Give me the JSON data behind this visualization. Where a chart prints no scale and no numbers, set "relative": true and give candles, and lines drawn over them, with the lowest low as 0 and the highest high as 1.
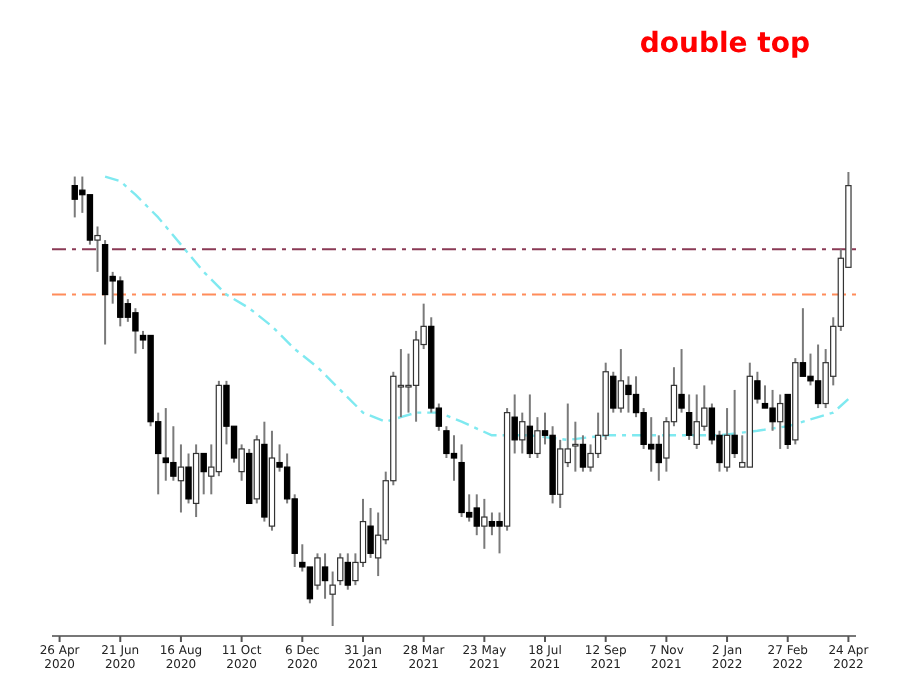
{
  "chart_data": {
    "type": "candlestick",
    "title": "double top",
    "relative": true,
    "xlim": [
      "2020-04-19",
      "2022-05-01"
    ],
    "xticks": [
      {
        "value": "2020-04-26",
        "label": "26 Apr 2020"
      },
      {
        "value": "2020-06-21",
        "label": "21 Jun 2020"
      },
      {
        "value": "2020-08-16",
        "label": "16 Aug 2020"
      },
      {
        "value": "2020-10-11",
        "label": "11 Oct 2020"
      },
      {
        "value": "2020-12-06",
        "label": "6 Dec 2020"
      },
      {
        "value": "2021-01-31",
        "label": "31 Jan 2021"
      },
      {
        "value": "2021-03-28",
        "label": "28 Mar 2021"
      },
      {
        "value": "2021-05-23",
        "label": "23 May 2021"
      },
      {
        "value": "2021-07-18",
        "label": "18 Jul 2021"
      },
      {
        "value": "2021-09-12",
        "label": "12 Sep 2021"
      },
      {
        "value": "2021-11-07",
        "label": "7 Nov 2021"
      },
      {
        "value": "2022-01-02",
        "label": "2 Jan 2022"
      },
      {
        "value": "2022-02-27",
        "label": "27 Feb 2022"
      },
      {
        "value": "2022-04-24",
        "label": "24 Apr 2022"
      }
    ],
    "x": [
      "2020-05-10",
      "2020-05-17",
      "2020-05-24",
      "2020-05-31",
      "2020-06-07",
      "2020-06-14",
      "2020-06-21",
      "2020-06-28",
      "2020-07-05",
      "2020-07-12",
      "2020-07-19",
      "2020-07-26",
      "2020-08-02",
      "2020-08-09",
      "2020-08-16",
      "2020-08-23",
      "2020-08-30",
      "2020-09-06",
      "2020-09-13",
      "2020-09-20",
      "2020-09-27",
      "2020-10-04",
      "2020-10-11",
      "2020-10-18",
      "2020-10-25",
      "2020-11-01",
      "2020-11-08",
      "2020-11-15",
      "2020-11-22",
      "2020-11-29",
      "2020-12-06",
      "2020-12-13",
      "2020-12-20",
      "2020-12-27",
      "2021-01-03",
      "2021-01-10",
      "2021-01-17",
      "2021-01-24",
      "2021-01-31",
      "2021-02-07",
      "2021-02-14",
      "2021-02-21",
      "2021-02-28",
      "2021-03-07",
      "2021-03-14",
      "2021-03-21",
      "2021-03-28",
      "2021-04-04",
      "2021-04-11",
      "2021-04-18",
      "2021-04-25",
      "2021-05-02",
      "2021-05-09",
      "2021-05-16",
      "2021-05-23",
      "2021-05-30",
      "2021-06-06",
      "2021-06-13",
      "2021-06-20",
      "2021-06-27",
      "2021-07-04",
      "2021-07-11",
      "2021-07-18",
      "2021-07-25",
      "2021-08-01",
      "2021-08-08",
      "2021-08-15",
      "2021-08-22",
      "2021-08-29",
      "2021-09-05",
      "2021-09-12",
      "2021-09-19",
      "2021-09-26",
      "2021-10-03",
      "2021-10-10",
      "2021-10-17",
      "2021-10-24",
      "2021-10-31",
      "2021-11-07",
      "2021-11-14",
      "2021-11-21",
      "2021-11-28",
      "2021-12-05",
      "2021-12-12",
      "2021-12-19",
      "2021-12-26",
      "2022-01-02",
      "2022-01-09",
      "2022-01-16",
      "2022-01-23",
      "2022-01-30",
      "2022-02-06",
      "2022-02-13",
      "2022-02-20",
      "2022-02-27",
      "2022-03-06",
      "2022-03-13",
      "2022-03-20",
      "2022-03-27",
      "2022-04-03",
      "2022-04-10",
      "2022-04-17",
      "2022-04-24"
    ],
    "ohlc": [
      [
        0.97,
        0.99,
        0.9,
        0.94
      ],
      [
        0.96,
        0.99,
        0.91,
        0.95
      ],
      [
        0.95,
        0.95,
        0.84,
        0.85
      ],
      [
        0.85,
        0.88,
        0.78,
        0.86
      ],
      [
        0.84,
        0.85,
        0.62,
        0.73
      ],
      [
        0.77,
        0.78,
        0.71,
        0.76
      ],
      [
        0.76,
        0.77,
        0.66,
        0.68
      ],
      [
        0.71,
        0.72,
        0.67,
        0.68
      ],
      [
        0.69,
        0.7,
        0.6,
        0.65
      ],
      [
        0.64,
        0.65,
        0.61,
        0.63
      ],
      [
        0.64,
        0.64,
        0.44,
        0.45
      ],
      [
        0.45,
        0.47,
        0.29,
        0.38
      ],
      [
        0.37,
        0.48,
        0.32,
        0.36
      ],
      [
        0.36,
        0.44,
        0.32,
        0.33
      ],
      [
        0.32,
        0.4,
        0.25,
        0.35
      ],
      [
        0.35,
        0.38,
        0.27,
        0.28
      ],
      [
        0.27,
        0.4,
        0.24,
        0.38
      ],
      [
        0.38,
        0.38,
        0.29,
        0.34
      ],
      [
        0.33,
        0.4,
        0.29,
        0.35
      ],
      [
        0.34,
        0.54,
        0.33,
        0.53
      ],
      [
        0.53,
        0.54,
        0.4,
        0.44
      ],
      [
        0.44,
        0.44,
        0.36,
        0.37
      ],
      [
        0.34,
        0.4,
        0.32,
        0.39
      ],
      [
        0.38,
        0.39,
        0.27,
        0.27
      ],
      [
        0.28,
        0.42,
        0.27,
        0.41
      ],
      [
        0.4,
        0.45,
        0.23,
        0.24
      ],
      [
        0.22,
        0.43,
        0.21,
        0.37
      ],
      [
        0.36,
        0.4,
        0.34,
        0.35
      ],
      [
        0.35,
        0.38,
        0.27,
        0.28
      ],
      [
        0.28,
        0.29,
        0.13,
        0.16
      ],
      [
        0.14,
        0.18,
        0.12,
        0.13
      ],
      [
        0.13,
        0.13,
        0.05,
        0.06
      ],
      [
        0.09,
        0.16,
        0.08,
        0.15
      ],
      [
        0.13,
        0.16,
        0.06,
        0.1
      ],
      [
        0.07,
        0.12,
        0.0,
        0.09
      ],
      [
        0.1,
        0.16,
        0.09,
        0.15
      ],
      [
        0.14,
        0.16,
        0.08,
        0.09
      ],
      [
        0.1,
        0.16,
        0.09,
        0.14
      ],
      [
        0.14,
        0.28,
        0.13,
        0.23
      ],
      [
        0.22,
        0.26,
        0.15,
        0.16
      ],
      [
        0.15,
        0.25,
        0.11,
        0.2
      ],
      [
        0.19,
        0.34,
        0.18,
        0.32
      ],
      [
        0.32,
        0.56,
        0.31,
        0.55
      ],
      [
        0.53,
        0.61,
        0.46,
        0.53
      ],
      [
        0.53,
        0.6,
        0.47,
        0.53
      ],
      [
        0.53,
        0.65,
        0.45,
        0.63
      ],
      [
        0.62,
        0.71,
        0.61,
        0.66
      ],
      [
        0.66,
        0.68,
        0.47,
        0.48
      ],
      [
        0.48,
        0.49,
        0.43,
        0.44
      ],
      [
        0.43,
        0.44,
        0.37,
        0.38
      ],
      [
        0.38,
        0.42,
        0.32,
        0.37
      ],
      [
        0.36,
        0.4,
        0.24,
        0.25
      ],
      [
        0.25,
        0.29,
        0.23,
        0.24
      ],
      [
        0.26,
        0.29,
        0.2,
        0.22
      ],
      [
        0.22,
        0.28,
        0.17,
        0.24
      ],
      [
        0.23,
        0.25,
        0.2,
        0.22
      ],
      [
        0.23,
        0.25,
        0.16,
        0.22
      ],
      [
        0.22,
        0.48,
        0.21,
        0.47
      ],
      [
        0.46,
        0.51,
        0.38,
        0.41
      ],
      [
        0.41,
        0.47,
        0.38,
        0.45
      ],
      [
        0.44,
        0.51,
        0.37,
        0.38
      ],
      [
        0.38,
        0.46,
        0.37,
        0.43
      ],
      [
        0.43,
        0.47,
        0.4,
        0.42
      ],
      [
        0.42,
        0.44,
        0.27,
        0.29
      ],
      [
        0.29,
        0.41,
        0.26,
        0.39
      ],
      [
        0.36,
        0.49,
        0.35,
        0.39
      ],
      [
        0.4,
        0.45,
        0.34,
        0.4
      ],
      [
        0.4,
        0.42,
        0.34,
        0.35
      ],
      [
        0.35,
        0.4,
        0.34,
        0.38
      ],
      [
        0.38,
        0.47,
        0.37,
        0.42
      ],
      [
        0.42,
        0.58,
        0.41,
        0.56
      ],
      [
        0.55,
        0.56,
        0.47,
        0.48
      ],
      [
        0.48,
        0.61,
        0.47,
        0.54
      ],
      [
        0.53,
        0.55,
        0.47,
        0.51
      ],
      [
        0.51,
        0.55,
        0.46,
        0.47
      ],
      [
        0.47,
        0.48,
        0.39,
        0.4
      ],
      [
        0.4,
        0.46,
        0.34,
        0.39
      ],
      [
        0.4,
        0.42,
        0.32,
        0.36
      ],
      [
        0.37,
        0.46,
        0.34,
        0.45
      ],
      [
        0.45,
        0.57,
        0.44,
        0.53
      ],
      [
        0.51,
        0.61,
        0.47,
        0.48
      ],
      [
        0.47,
        0.51,
        0.41,
        0.42
      ],
      [
        0.4,
        0.51,
        0.39,
        0.45
      ],
      [
        0.44,
        0.53,
        0.43,
        0.48
      ],
      [
        0.48,
        0.49,
        0.4,
        0.41
      ],
      [
        0.42,
        0.43,
        0.34,
        0.36
      ],
      [
        0.35,
        0.48,
        0.34,
        0.42
      ],
      [
        0.42,
        0.52,
        0.37,
        0.38
      ],
      [
        0.35,
        0.42,
        0.35,
        0.36
      ],
      [
        0.35,
        0.58,
        0.35,
        0.55
      ],
      [
        0.54,
        0.56,
        0.49,
        0.5
      ],
      [
        0.49,
        0.53,
        0.48,
        0.48
      ],
      [
        0.48,
        0.52,
        0.43,
        0.45
      ],
      [
        0.45,
        0.51,
        0.39,
        0.49
      ],
      [
        0.51,
        0.51,
        0.39,
        0.4
      ],
      [
        0.41,
        0.59,
        0.4,
        0.58
      ],
      [
        0.58,
        0.7,
        0.55,
        0.55
      ],
      [
        0.55,
        0.6,
        0.53,
        0.54
      ],
      [
        0.54,
        0.62,
        0.48,
        0.49
      ],
      [
        0.49,
        0.61,
        0.48,
        0.58
      ],
      [
        0.55,
        0.68,
        0.53,
        0.66
      ],
      [
        0.66,
        0.83,
        0.65,
        0.81
      ],
      [
        0.79,
        1.0,
        0.79,
        0.97
      ]
    ],
    "series": [
      {
        "type": "line",
        "color": "#7fe9f0",
        "line_style": "dashed",
        "x": [
          "2020-06-07",
          "2020-06-21",
          "2020-07-05",
          "2020-07-26",
          "2020-08-16",
          "2020-09-06",
          "2020-09-27",
          "2020-10-18",
          "2020-11-08",
          "2020-11-29",
          "2020-12-20",
          "2021-01-10",
          "2021-01-31",
          "2021-02-21",
          "2021-03-07",
          "2021-03-21",
          "2021-04-11",
          "2021-05-02",
          "2021-05-30",
          "2021-07-04",
          "2021-08-08",
          "2021-09-12",
          "2021-10-17",
          "2021-11-21",
          "2021-12-26",
          "2022-01-30",
          "2022-02-27",
          "2022-03-27",
          "2022-04-10",
          "2022-04-24"
        ],
        "values": [
          0.99,
          0.98,
          0.95,
          0.9,
          0.84,
          0.78,
          0.73,
          0.7,
          0.66,
          0.61,
          0.57,
          0.52,
          0.47,
          0.45,
          0.46,
          0.47,
          0.47,
          0.45,
          0.42,
          0.42,
          0.41,
          0.42,
          0.42,
          0.42,
          0.42,
          0.43,
          0.44,
          0.46,
          0.47,
          0.5
        ]
      }
    ],
    "ref_lines": [
      {
        "axis": "y",
        "value": 0.83,
        "color": "#8a3a55",
        "line_style": "dashed"
      },
      {
        "axis": "y",
        "value": 0.73,
        "color": "#ff8c5a",
        "line_style": "dashed"
      }
    ]
  }
}
